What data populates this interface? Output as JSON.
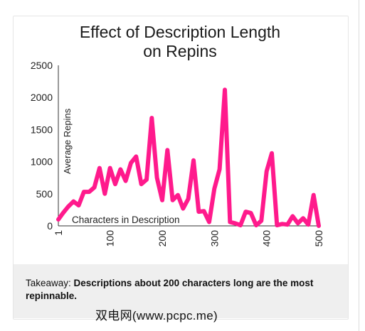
{
  "chart_data": {
    "type": "line",
    "title_line1": "Effect of Description Length",
    "title_line2": "on Repins",
    "xlabel": "Characters in Description",
    "ylabel": "Average  Repins",
    "xlim": [
      1,
      500
    ],
    "ylim": [
      0,
      2500
    ],
    "x_ticks": [
      1,
      100,
      200,
      300,
      400,
      500
    ],
    "y_ticks": [
      0,
      500,
      1000,
      1500,
      2000,
      2500
    ],
    "series_color": "#ff1a8c",
    "x": [
      1,
      10,
      20,
      30,
      40,
      50,
      60,
      70,
      80,
      90,
      100,
      110,
      120,
      130,
      140,
      150,
      160,
      170,
      180,
      190,
      200,
      210,
      220,
      230,
      240,
      250,
      260,
      270,
      280,
      290,
      300,
      310,
      320,
      330,
      340,
      350,
      360,
      370,
      380,
      390,
      400,
      410,
      420,
      430,
      440,
      450,
      460,
      470,
      480,
      490,
      500
    ],
    "values": [
      100,
      200,
      300,
      380,
      320,
      530,
      530,
      600,
      900,
      500,
      900,
      650,
      880,
      700,
      980,
      1080,
      650,
      720,
      1680,
      750,
      400,
      1180,
      400,
      480,
      270,
      420,
      1020,
      220,
      230,
      60,
      580,
      880,
      2120,
      60,
      40,
      10,
      220,
      200,
      10,
      80,
      850,
      1130,
      10,
      30,
      20,
      150,
      40,
      120,
      20,
      480,
      0
    ]
  },
  "takeaway": {
    "prefix": "Takeaway: ",
    "bold": "Descriptions about 200 characters long are the most repinnable."
  },
  "watermark": "双电网(www.pcpc.me)"
}
